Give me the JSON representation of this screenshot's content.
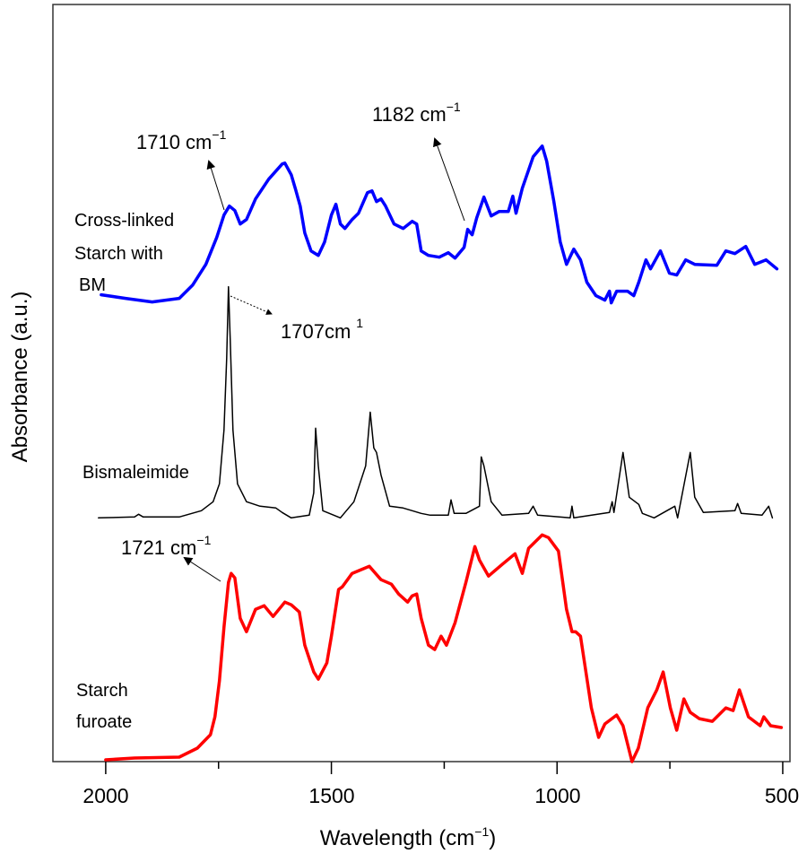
{
  "chart_data": {
    "type": "line",
    "title": "",
    "xlabel": "Wavelength (cm",
    "xlabel_sup": "−1",
    "xlabel_end": ")",
    "ylabel": "Absorbance (a.u.)",
    "xlim": [
      2117,
      484
    ],
    "ylim": [
      0,
      84.5
    ],
    "x_reversed": true,
    "grid": false,
    "legend": "none",
    "xticks": [
      {
        "value": 2000,
        "label": "2000"
      },
      {
        "value": 1500,
        "label": "1500"
      },
      {
        "value": 1000,
        "label": "1000"
      },
      {
        "value": 500,
        "label": "500"
      }
    ],
    "minor_xticks": [
      1750,
      1250,
      750
    ],
    "series": [
      {
        "name": "Cross-linked Starch with BM",
        "label_lines": [
          "Cross-linked",
          "Starch with",
          "BM"
        ],
        "color": "#0000ff",
        "points": [
          [
            2010,
            52.1
          ],
          [
            1956,
            51.7
          ],
          [
            1897,
            51.3
          ],
          [
            1837,
            51.7
          ],
          [
            1807,
            53.2
          ],
          [
            1778,
            55.5
          ],
          [
            1754,
            58.5
          ],
          [
            1738,
            61.0
          ],
          [
            1726,
            62.0
          ],
          [
            1714,
            61.5
          ],
          [
            1702,
            60.0
          ],
          [
            1688,
            60.5
          ],
          [
            1668,
            62.8
          ],
          [
            1639,
            65.0
          ],
          [
            1609,
            66.7
          ],
          [
            1603,
            66.8
          ],
          [
            1589,
            65.5
          ],
          [
            1579,
            63.8
          ],
          [
            1569,
            62.0
          ],
          [
            1559,
            59.0
          ],
          [
            1545,
            57.0
          ],
          [
            1529,
            56.5
          ],
          [
            1515,
            58.0
          ],
          [
            1500,
            61.0
          ],
          [
            1490,
            62.2
          ],
          [
            1480,
            60.0
          ],
          [
            1470,
            59.5
          ],
          [
            1454,
            60.5
          ],
          [
            1440,
            61.2
          ],
          [
            1420,
            63.5
          ],
          [
            1410,
            63.7
          ],
          [
            1400,
            62.5
          ],
          [
            1390,
            62.8
          ],
          [
            1380,
            62.0
          ],
          [
            1361,
            60.0
          ],
          [
            1341,
            59.5
          ],
          [
            1321,
            60.3
          ],
          [
            1311,
            60.0
          ],
          [
            1301,
            57.0
          ],
          [
            1285,
            56.5
          ],
          [
            1261,
            56.3
          ],
          [
            1241,
            56.8
          ],
          [
            1226,
            56.2
          ],
          [
            1206,
            57.4
          ],
          [
            1198,
            59.4
          ],
          [
            1188,
            58.8
          ],
          [
            1178,
            60.7
          ],
          [
            1162,
            63.0
          ],
          [
            1146,
            60.9
          ],
          [
            1128,
            61.4
          ],
          [
            1108,
            61.4
          ],
          [
            1098,
            63.1
          ],
          [
            1091,
            61.2
          ],
          [
            1077,
            64.0
          ],
          [
            1053,
            67.5
          ],
          [
            1033,
            68.7
          ],
          [
            1023,
            67.0
          ],
          [
            1007,
            62.5
          ],
          [
            993,
            58.0
          ],
          [
            979,
            55.5
          ],
          [
            963,
            57.2
          ],
          [
            948,
            56.0
          ],
          [
            934,
            53.5
          ],
          [
            914,
            52.0
          ],
          [
            894,
            51.5
          ],
          [
            884,
            52.5
          ],
          [
            880,
            51.2
          ],
          [
            868,
            52.5
          ],
          [
            844,
            52.5
          ],
          [
            830,
            52.0
          ],
          [
            819,
            53.5
          ],
          [
            803,
            56.0
          ],
          [
            793,
            55.0
          ],
          [
            771,
            57.0
          ],
          [
            751,
            54.5
          ],
          [
            735,
            54.3
          ],
          [
            715,
            56.0
          ],
          [
            695,
            55.5
          ],
          [
            646,
            55.4
          ],
          [
            626,
            57.0
          ],
          [
            606,
            56.7
          ],
          [
            582,
            57.5
          ],
          [
            562,
            55.5
          ],
          [
            537,
            56.0
          ],
          [
            513,
            55.0
          ]
        ]
      },
      {
        "name": "Bismaleimide",
        "label_lines": [
          "Bismaleimide"
        ],
        "color": "#000000",
        "points": [
          [
            2016,
            27.2
          ],
          [
            1936,
            27.3
          ],
          [
            1927,
            27.6
          ],
          [
            1917,
            27.3
          ],
          [
            1837,
            27.3
          ],
          [
            1788,
            28.0
          ],
          [
            1762,
            29.0
          ],
          [
            1748,
            31.0
          ],
          [
            1738,
            37.0
          ],
          [
            1732,
            45.0
          ],
          [
            1728,
            53.0
          ],
          [
            1724,
            47.0
          ],
          [
            1718,
            37.0
          ],
          [
            1708,
            31.0
          ],
          [
            1688,
            29.0
          ],
          [
            1658,
            28.5
          ],
          [
            1623,
            28.3
          ],
          [
            1609,
            27.8
          ],
          [
            1589,
            27.2
          ],
          [
            1549,
            27.5
          ],
          [
            1539,
            30.0
          ],
          [
            1535,
            37.2
          ],
          [
            1529,
            33.0
          ],
          [
            1519,
            28.0
          ],
          [
            1480,
            27.2
          ],
          [
            1450,
            29.0
          ],
          [
            1424,
            33.0
          ],
          [
            1414,
            39.0
          ],
          [
            1406,
            35.0
          ],
          [
            1400,
            34.5
          ],
          [
            1390,
            32.0
          ],
          [
            1371,
            28.5
          ],
          [
            1341,
            28.3
          ],
          [
            1321,
            28.0
          ],
          [
            1301,
            27.7
          ],
          [
            1281,
            27.5
          ],
          [
            1241,
            27.5
          ],
          [
            1235,
            29.2
          ],
          [
            1228,
            27.7
          ],
          [
            1202,
            27.7
          ],
          [
            1172,
            28.5
          ],
          [
            1168,
            34.0
          ],
          [
            1162,
            33.0
          ],
          [
            1146,
            29.0
          ],
          [
            1122,
            27.5
          ],
          [
            1063,
            27.7
          ],
          [
            1053,
            28.5
          ],
          [
            1043,
            27.5
          ],
          [
            971,
            27.2
          ],
          [
            967,
            28.5
          ],
          [
            963,
            27.2
          ],
          [
            884,
            27.8
          ],
          [
            878,
            29.0
          ],
          [
            874,
            27.8
          ],
          [
            854,
            34.5
          ],
          [
            840,
            29.5
          ],
          [
            819,
            28.7
          ],
          [
            811,
            27.7
          ],
          [
            785,
            27.2
          ],
          [
            739,
            28.5
          ],
          [
            733,
            27.2
          ],
          [
            705,
            34.5
          ],
          [
            695,
            29.5
          ],
          [
            676,
            27.8
          ],
          [
            606,
            28.0
          ],
          [
            600,
            28.8
          ],
          [
            592,
            27.7
          ],
          [
            546,
            27.5
          ],
          [
            531,
            28.5
          ],
          [
            523,
            27.2
          ]
        ]
      },
      {
        "name": "Starch furoate",
        "label_lines": [
          "Starch",
          "furoate"
        ],
        "color": "#ff0000",
        "points": [
          [
            2000,
            0.2
          ],
          [
            1936,
            0.4
          ],
          [
            1837,
            0.5
          ],
          [
            1797,
            1.5
          ],
          [
            1768,
            3.0
          ],
          [
            1758,
            5.0
          ],
          [
            1748,
            9.0
          ],
          [
            1738,
            15.0
          ],
          [
            1728,
            20.0
          ],
          [
            1722,
            21.0
          ],
          [
            1714,
            20.5
          ],
          [
            1702,
            16.0
          ],
          [
            1688,
            14.5
          ],
          [
            1668,
            17.0
          ],
          [
            1649,
            17.4
          ],
          [
            1629,
            16.2
          ],
          [
            1603,
            17.8
          ],
          [
            1589,
            17.5
          ],
          [
            1571,
            16.7
          ],
          [
            1559,
            13.0
          ],
          [
            1539,
            10.0
          ],
          [
            1529,
            9.2
          ],
          [
            1510,
            11.0
          ],
          [
            1500,
            14.0
          ],
          [
            1484,
            19.2
          ],
          [
            1476,
            19.5
          ],
          [
            1454,
            21.0
          ],
          [
            1416,
            21.8
          ],
          [
            1390,
            20.3
          ],
          [
            1367,
            19.8
          ],
          [
            1351,
            18.7
          ],
          [
            1331,
            17.8
          ],
          [
            1321,
            18.5
          ],
          [
            1311,
            18.7
          ],
          [
            1301,
            16.0
          ],
          [
            1285,
            13.0
          ],
          [
            1271,
            12.5
          ],
          [
            1257,
            14.0
          ],
          [
            1245,
            13.0
          ],
          [
            1226,
            15.5
          ],
          [
            1202,
            20.0
          ],
          [
            1182,
            24.0
          ],
          [
            1172,
            22.5
          ],
          [
            1152,
            20.7
          ],
          [
            1122,
            22.0
          ],
          [
            1093,
            23.2
          ],
          [
            1077,
            21.0
          ],
          [
            1063,
            23.8
          ],
          [
            1033,
            25.3
          ],
          [
            1019,
            25.0
          ],
          [
            997,
            23.5
          ],
          [
            979,
            17.0
          ],
          [
            967,
            14.5
          ],
          [
            959,
            14.5
          ],
          [
            948,
            14.0
          ],
          [
            924,
            6.0
          ],
          [
            908,
            2.7
          ],
          [
            894,
            4.2
          ],
          [
            868,
            5.2
          ],
          [
            854,
            4.0
          ],
          [
            834,
            0.0
          ],
          [
            820,
            1.5
          ],
          [
            799,
            6.0
          ],
          [
            779,
            8.0
          ],
          [
            765,
            10.0
          ],
          [
            749,
            6.0
          ],
          [
            735,
            3.5
          ],
          [
            719,
            7.0
          ],
          [
            705,
            5.5
          ],
          [
            685,
            4.8
          ],
          [
            656,
            4.5
          ],
          [
            626,
            6.0
          ],
          [
            610,
            5.7
          ],
          [
            596,
            8.0
          ],
          [
            576,
            5.0
          ],
          [
            550,
            4.0
          ],
          [
            542,
            5.0
          ],
          [
            527,
            4.0
          ],
          [
            503,
            3.8
          ]
        ]
      }
    ],
    "annotations": [
      {
        "text": "1710 cm",
        "sup": "−1",
        "series": "Cross-linked Starch with BM",
        "x": 1710
      },
      {
        "text": "1182 cm",
        "sup": "−1",
        "series": "Cross-linked Starch with BM",
        "x": 1182
      },
      {
        "text": "1707cm",
        "sup": "1",
        "series": "Bismaleimide",
        "x": 1707
      },
      {
        "text": "1721 cm",
        "sup": "−1",
        "series": "Starch furoate",
        "x": 1721
      }
    ]
  }
}
